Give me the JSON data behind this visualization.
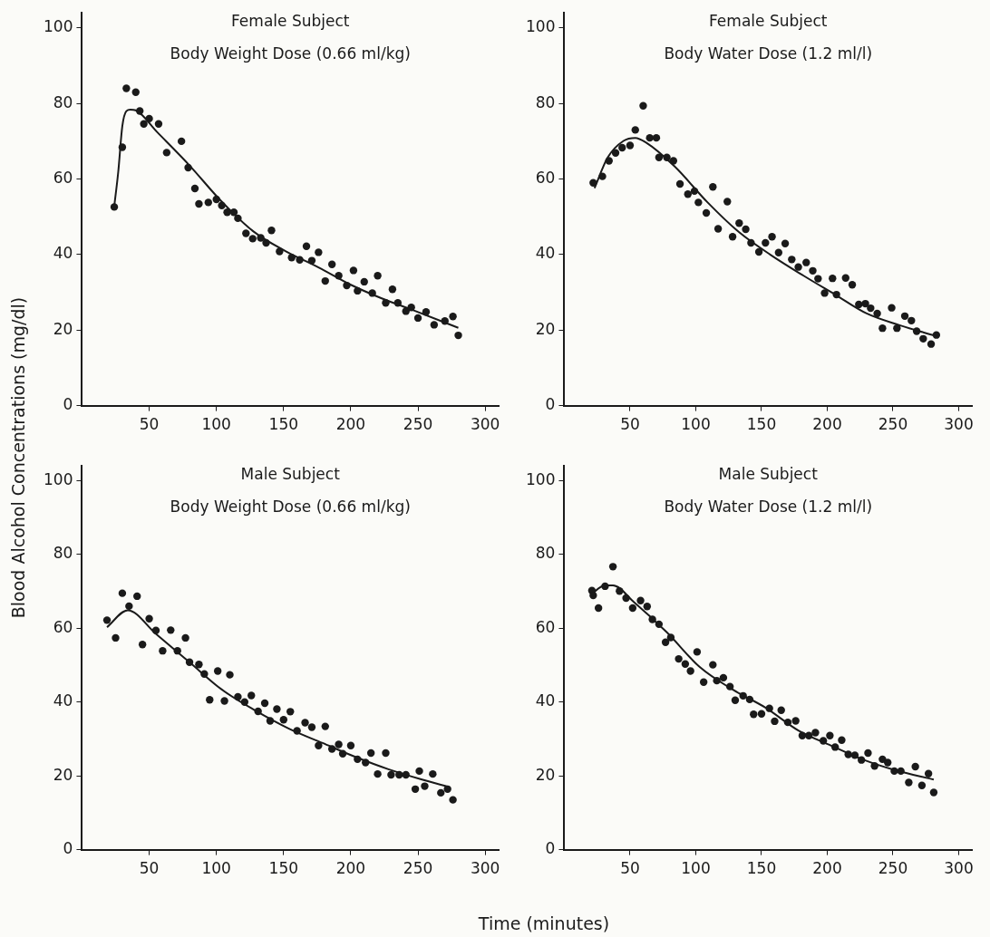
{
  "chart_data": [
    {
      "type": "scatter",
      "title": "Female Subject",
      "subtitle": "Body Weight Dose (0.66 ml/kg)",
      "ylabel": "Blood Alcohol Concentrations (mg/dl)",
      "xlim": [
        0,
        310
      ],
      "xticks": [
        50,
        100,
        150,
        200,
        250,
        300
      ],
      "ylim": [
        0,
        104
      ],
      "yticks": [
        0,
        20,
        40,
        60,
        80,
        100
      ],
      "marker": "circle",
      "series": [
        {
          "color": "#1a1a1a",
          "x": [
            24,
            30,
            33,
            40,
            43,
            46,
            50,
            57,
            63,
            74,
            79,
            84,
            87,
            94,
            100,
            104,
            108,
            113,
            116,
            122,
            127,
            133,
            137,
            141,
            147,
            156,
            162,
            167,
            171,
            176,
            181,
            186,
            191,
            197,
            202,
            205,
            210,
            216,
            220,
            226,
            231,
            235,
            241,
            245,
            250,
            256,
            262,
            270,
            276,
            280
          ],
          "values": [
            52.6,
            68.4,
            84,
            83,
            78,
            74.6,
            76,
            74.6,
            67,
            70,
            63,
            57.5,
            53.4,
            53.8,
            54.6,
            53,
            51.2,
            51.2,
            49.6,
            45.6,
            44.2,
            44.4,
            43.1,
            46.4,
            40.8,
            39.2,
            38.6,
            42.2,
            38.4,
            40.6,
            33,
            37.4,
            34.4,
            31.8,
            35.8,
            30.4,
            32.8,
            29.8,
            34.4,
            27.2,
            30.8,
            27.2,
            25,
            26,
            23.2,
            24.8,
            21.4,
            22.4,
            23.6,
            18.6
          ]
        },
        {
          "type": "line",
          "marker": "none",
          "color": "#1a1a1a",
          "x": [
            24,
            27,
            30,
            33,
            36,
            40,
            56,
            80,
            104,
            128,
            152,
            176,
            200,
            223,
            247,
            280
          ],
          "values": [
            52.8,
            62,
            74,
            78,
            78.4,
            78.2,
            72.4,
            63.6,
            54,
            46,
            40.8,
            36.6,
            32,
            28.4,
            25.2,
            20.6
          ]
        }
      ]
    },
    {
      "type": "scatter",
      "title": "Female Subject",
      "subtitle": "Body Water Dose (1.2 ml/l)",
      "xlim": [
        0,
        310
      ],
      "xticks": [
        50,
        100,
        150,
        200,
        250,
        300
      ],
      "ylim": [
        0,
        104
      ],
      "yticks": [
        0,
        20,
        40,
        60,
        80,
        100
      ],
      "marker": "circle",
      "series": [
        {
          "color": "#1a1a1a",
          "x": [
            22,
            29,
            34,
            39,
            44,
            50,
            54,
            60,
            65,
            70,
            72,
            78,
            83,
            88,
            94,
            99,
            102,
            108,
            113,
            117,
            124,
            128,
            133,
            138,
            142,
            148,
            153,
            158,
            163,
            168,
            173,
            178,
            184,
            189,
            193,
            198,
            204,
            207,
            214,
            219,
            224,
            229,
            233,
            238,
            242,
            249,
            253,
            259,
            264,
            268,
            273,
            279,
            283
          ],
          "values": [
            59,
            60.7,
            64.8,
            66.9,
            68.3,
            68.9,
            73,
            79.4,
            70.9,
            70.9,
            65.7,
            65.7,
            64.8,
            58.7,
            56,
            56.8,
            53.8,
            51,
            57.9,
            46.8,
            54,
            44.7,
            48.3,
            46.7,
            43.1,
            40.7,
            43.1,
            44.7,
            40.5,
            42.9,
            38.7,
            36.7,
            37.9,
            35.7,
            33.6,
            29.8,
            33.7,
            29.4,
            33.8,
            32,
            26.8,
            27,
            25.8,
            24.4,
            20.5,
            25.9,
            20.5,
            23.7,
            22.5,
            19.7,
            17.7,
            16.3,
            18.7
          ]
        },
        {
          "type": "line",
          "marker": "none",
          "color": "#1a1a1a",
          "x": [
            23,
            33,
            45,
            54,
            62,
            84,
            109,
            133,
            157,
            182,
            206,
            230,
            255,
            282
          ],
          "values": [
            57.6,
            65.7,
            70.1,
            70.9,
            69.7,
            63.3,
            53.8,
            45.9,
            39.9,
            34.4,
            29.4,
            24.4,
            21.3,
            18.5
          ]
        }
      ]
    },
    {
      "type": "scatter",
      "title": "Male Subject",
      "subtitle": "Body Weight Dose (0.66 ml/kg)",
      "xlabel": "Time (minutes)",
      "xlim": [
        0,
        310
      ],
      "xticks": [
        50,
        100,
        150,
        200,
        250,
        300
      ],
      "ylim": [
        0,
        104
      ],
      "yticks": [
        0,
        20,
        40,
        60,
        80,
        100
      ],
      "marker": "circle",
      "series": [
        {
          "color": "#1a1a1a",
          "x": [
            18.6,
            25,
            30,
            35,
            41,
            45,
            50,
            55,
            60,
            66,
            71,
            77,
            80,
            87,
            91,
            95,
            101,
            106,
            110,
            116,
            121,
            126,
            131,
            136,
            140,
            145,
            150,
            155,
            160,
            166,
            171,
            176,
            181,
            186,
            191,
            194,
            200,
            205,
            211,
            215,
            220,
            226,
            230,
            236,
            241,
            248,
            251,
            255,
            261,
            267,
            272,
            276
          ],
          "values": [
            62.2,
            57.4,
            69.5,
            66,
            68.7,
            55.6,
            62.6,
            59.4,
            53.9,
            59.5,
            53.9,
            57.4,
            50.8,
            50.2,
            47.6,
            40.6,
            48.4,
            40.3,
            47.4,
            41.4,
            40,
            41.8,
            37.5,
            39.7,
            34.9,
            38.1,
            35.2,
            37.4,
            32.2,
            34.4,
            33.2,
            28.2,
            33.4,
            27.3,
            28.5,
            26,
            28.2,
            24.5,
            23.6,
            26.2,
            20.5,
            26.2,
            20.3,
            20.3,
            20.3,
            16.4,
            21.3,
            17.2,
            20.5,
            15.4,
            16.4,
            13.5
          ]
        },
        {
          "type": "line",
          "marker": "none",
          "color": "#1a1a1a",
          "x": [
            18.6,
            34,
            55,
            80,
            104,
            129,
            154,
            179,
            203,
            228,
            253,
            273
          ],
          "values": [
            60.3,
            64.9,
            58.5,
            50.8,
            43.4,
            37.7,
            32.8,
            28.9,
            25.2,
            21.8,
            19,
            17
          ]
        }
      ]
    },
    {
      "type": "scatter",
      "title": "Male Subject",
      "subtitle": "Body Water Dose (1.2 ml/l)",
      "xlim": [
        0,
        310
      ],
      "xticks": [
        50,
        100,
        150,
        200,
        250,
        300
      ],
      "ylim": [
        0,
        104
      ],
      "yticks": [
        0,
        20,
        40,
        60,
        80,
        100
      ],
      "marker": "circle",
      "series": [
        {
          "color": "#1a1a1a",
          "x": [
            21,
            22,
            26,
            31,
            37,
            42,
            47,
            52,
            58,
            63,
            67,
            72,
            77,
            81,
            87,
            92,
            96,
            101,
            106,
            113,
            116,
            121,
            126,
            130,
            136,
            141,
            144,
            150,
            156,
            160,
            165,
            170,
            176,
            181,
            186,
            191,
            197,
            202,
            206,
            211,
            216,
            221,
            226,
            231,
            236,
            242,
            246,
            251,
            256,
            262,
            267,
            272,
            277,
            281
          ],
          "values": [
            70.2,
            68.9,
            65.5,
            71.4,
            76.7,
            70.1,
            68.2,
            65.5,
            67.5,
            65.9,
            62.4,
            61.1,
            56.2,
            57.5,
            51.7,
            50.3,
            48.4,
            53.6,
            45.4,
            50.1,
            45.8,
            46.6,
            44.2,
            40.5,
            41.7,
            40.7,
            36.7,
            36.8,
            38.3,
            34.8,
            37.8,
            34.5,
            34.9,
            30.9,
            30.9,
            31.7,
            29.5,
            30.9,
            27.8,
            29.7,
            25.8,
            25.6,
            24.3,
            26.2,
            22.7,
            24.5,
            23.6,
            21.3,
            21.3,
            18.2,
            22.5,
            17.4,
            20.6,
            15.5
          ]
        },
        {
          "type": "line",
          "marker": "none",
          "color": "#1a1a1a",
          "x": [
            20,
            31,
            37,
            53,
            78,
            103,
            128,
            153,
            178,
            203,
            228,
            252,
            281
          ],
          "values": [
            69.1,
            71.6,
            71.6,
            67.1,
            58.9,
            49.5,
            43.4,
            38.5,
            32.3,
            28.2,
            24.3,
            21.5,
            19
          ]
        }
      ]
    }
  ]
}
